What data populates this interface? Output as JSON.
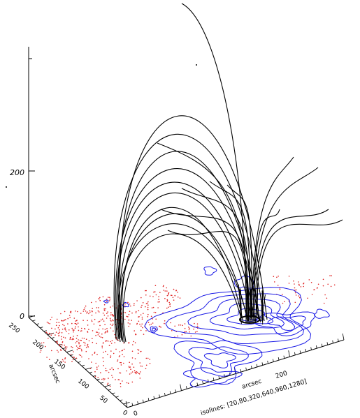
{
  "chart_data": {
    "type": "3d-field-line-plot",
    "z_axis": {
      "ticks": [
        "0",
        "200"
      ]
    },
    "y_axis": {
      "label": "arcsec",
      "ticks": [
        "0",
        "50",
        "100",
        "150",
        "200",
        "250"
      ]
    },
    "x_axis": {
      "label": "arcsec",
      "ticks": [
        "0",
        "200"
      ]
    },
    "isolines_label": "isolines: [20,80,320,640,960,1280]",
    "isoline_levels": [
      20,
      80,
      320,
      640,
      960,
      1280
    ],
    "colors": {
      "field_lines": "#000000",
      "positive_contours": "#1a1ae6",
      "negative_points": "#e02020"
    }
  }
}
